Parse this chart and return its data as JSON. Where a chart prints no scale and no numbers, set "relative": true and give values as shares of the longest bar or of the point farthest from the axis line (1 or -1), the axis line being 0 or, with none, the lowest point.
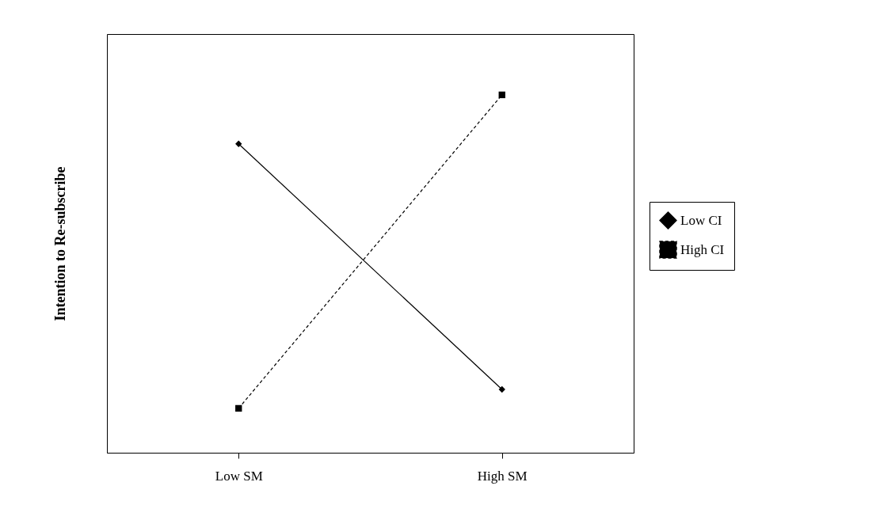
{
  "chart_data": {
    "type": "line",
    "relative": true,
    "ylabel": "Intention to Re-subscribe",
    "categories": [
      "Low SM",
      "High SM"
    ],
    "series": [
      {
        "name": "Low CI",
        "color": "#000000",
        "values": [
          0.863,
          0.177
        ],
        "marker": "diamond",
        "line_style": "solid"
      },
      {
        "name": "High CI",
        "color": "#000000",
        "values": [
          0.124,
          1
        ],
        "marker": "square",
        "line_style": "dashed"
      }
    ],
    "legend": "right",
    "grid": false
  }
}
